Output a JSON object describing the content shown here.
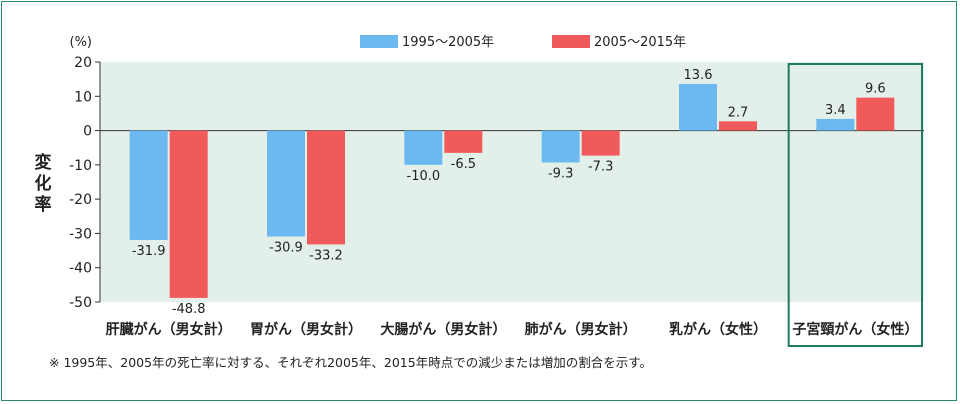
{
  "chart_data": {
    "type": "bar",
    "title": "",
    "ylabel": "変化率",
    "yunit": "(%)",
    "ylim": [
      -50,
      20
    ],
    "yticks": [
      20,
      10,
      0,
      -10,
      -20,
      -30,
      -40,
      -50
    ],
    "grid": false,
    "legend_position": "top-center",
    "categories": [
      "肝臓がん（男女計）",
      "胃がん（男女計）",
      "大腸がん（男女計）",
      "肺がん（男女計）",
      "乳がん（女性）",
      "子宮頸がん（女性）"
    ],
    "highlighted_category": "子宮頸がん（女性）",
    "series": [
      {
        "name": "1995～2005年",
        "color": "#6cb8f0",
        "values": [
          -31.9,
          -30.9,
          -10.0,
          -9.3,
          13.6,
          3.4
        ],
        "labels": [
          "-31.9",
          "-30.9",
          "-10.0",
          "-9.3",
          "13.6",
          "3.4"
        ]
      },
      {
        "name": "2005～2015年",
        "color": "#f05a5a",
        "values": [
          -48.8,
          -33.2,
          -6.5,
          -7.3,
          2.7,
          9.6
        ],
        "labels": [
          "-48.8",
          "-33.2",
          "-6.5",
          "-7.3",
          "2.7",
          "9.6"
        ]
      }
    ],
    "plot_background": "#e2f0e9",
    "highlight_color": "#1e7a62"
  },
  "note": "※ 1995年、2005年の死亡率に対する、それぞれ2005年、2015年時点での減少または増加の割合を示す。"
}
